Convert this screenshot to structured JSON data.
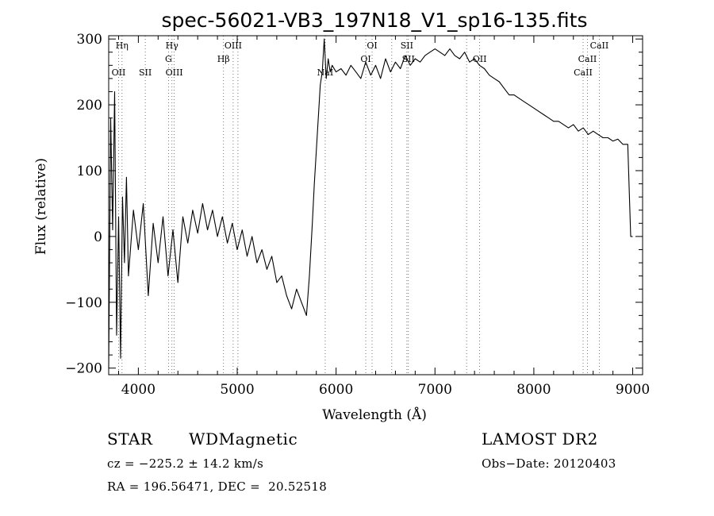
{
  "chart_data": {
    "type": "line",
    "title": "spec-56021-VB3_197N18_V1_sp16-135.fits",
    "xlabel": "Wavelength (Å)",
    "ylabel": "Flux (relative)",
    "xlim": [
      3700,
      9100
    ],
    "ylim": [
      -210,
      305
    ],
    "x_ticks": [
      4000,
      5000,
      6000,
      7000,
      8000,
      9000
    ],
    "y_ticks": [
      -200,
      -100,
      0,
      100,
      200,
      300
    ],
    "grid": false,
    "series": [
      {
        "x": [
          3700,
          3720,
          3740,
          3760,
          3780,
          3800,
          3820,
          3840,
          3860,
          3880,
          3900,
          3950,
          4000,
          4050,
          4100,
          4150,
          4200,
          4250,
          4300,
          4350,
          4400,
          4450,
          4500,
          4550,
          4600,
          4650,
          4700,
          4750,
          4800,
          4850,
          4900,
          4950,
          5000,
          5050,
          5100,
          5150,
          5200,
          5250,
          5300,
          5350,
          5400,
          5450,
          5500,
          5550,
          5600,
          5650,
          5700,
          5730,
          5760,
          5780,
          5800,
          5820,
          5840,
          5860,
          5880,
          5900,
          5920,
          5940,
          5960,
          6000,
          6050,
          6100,
          6150,
          6200,
          6250,
          6300,
          6350,
          6400,
          6450,
          6500,
          6550,
          6600,
          6650,
          6700,
          6750,
          6800,
          6850,
          6900,
          6950,
          7000,
          7050,
          7100,
          7150,
          7200,
          7250,
          7300,
          7350,
          7400,
          7450,
          7500,
          7550,
          7600,
          7650,
          7700,
          7750,
          7800,
          7850,
          7900,
          7950,
          8000,
          8050,
          8100,
          8150,
          8200,
          8250,
          8300,
          8350,
          8400,
          8450,
          8500,
          8550,
          8600,
          8650,
          8700,
          8750,
          8800,
          8850,
          8900,
          8950,
          8980,
          9000
        ],
        "y": [
          -200,
          180,
          10,
          220,
          -150,
          30,
          -185,
          60,
          -40,
          90,
          -60,
          40,
          -20,
          50,
          -90,
          20,
          -40,
          30,
          -60,
          10,
          -70,
          30,
          -10,
          40,
          5,
          50,
          10,
          40,
          0,
          30,
          -10,
          20,
          -20,
          10,
          -30,
          0,
          -40,
          -20,
          -50,
          -30,
          -70,
          -60,
          -90,
          -110,
          -80,
          -100,
          -120,
          -60,
          20,
          80,
          130,
          180,
          230,
          250,
          300,
          240,
          270,
          250,
          260,
          250,
          255,
          245,
          260,
          250,
          240,
          265,
          245,
          260,
          240,
          270,
          250,
          265,
          255,
          275,
          260,
          270,
          265,
          275,
          280,
          285,
          280,
          275,
          285,
          275,
          270,
          280,
          265,
          270,
          260,
          255,
          245,
          240,
          235,
          225,
          215,
          215,
          210,
          205,
          200,
          195,
          190,
          185,
          180,
          175,
          175,
          170,
          165,
          170,
          160,
          165,
          155,
          160,
          155,
          150,
          150,
          145,
          148,
          140,
          140,
          0,
          0
        ]
      }
    ],
    "line_markers": [
      {
        "x": 3800,
        "label": "OII",
        "row": 3
      },
      {
        "x": 3835,
        "label": "Hη",
        "row": 1
      },
      {
        "x": 4070,
        "label": "SII",
        "row": 3
      },
      {
        "x": 4305,
        "label": "G",
        "row": 2
      },
      {
        "x": 4340,
        "label": "Hγ",
        "row": 1
      },
      {
        "x": 4363,
        "label": "OIII",
        "row": 3
      },
      {
        "x": 4861,
        "label": "Hβ",
        "row": 2
      },
      {
        "x": 4959,
        "label": "OIII",
        "row": 1
      },
      {
        "x": 5007,
        "label": "",
        "row": 1
      },
      {
        "x": 5890,
        "label": "NaI",
        "row": 3
      },
      {
        "x": 6300,
        "label": "OI",
        "row": 2
      },
      {
        "x": 6364,
        "label": "OI",
        "row": 1
      },
      {
        "x": 6563,
        "label": "",
        "row": 1
      },
      {
        "x": 6716,
        "label": "SII",
        "row": 1
      },
      {
        "x": 6731,
        "label": "SII",
        "row": 2
      },
      {
        "x": 7320,
        "label": "",
        "row": 1
      },
      {
        "x": 7452,
        "label": "OII",
        "row": 2
      },
      {
        "x": 8498,
        "label": "CaII",
        "row": 3
      },
      {
        "x": 8542,
        "label": "CaII",
        "row": 2
      },
      {
        "x": 8662,
        "label": "CaII",
        "row": 1
      }
    ]
  },
  "info": {
    "class": "STAR",
    "subclass": "WDMagnetic",
    "survey": "LAMOST DR2",
    "cz": "cz = −225.2 ± 14.2 km/s",
    "obs_date": "Obs−Date: 20120403",
    "radec": "RA = 196.56471, DEC =  20.52518"
  }
}
